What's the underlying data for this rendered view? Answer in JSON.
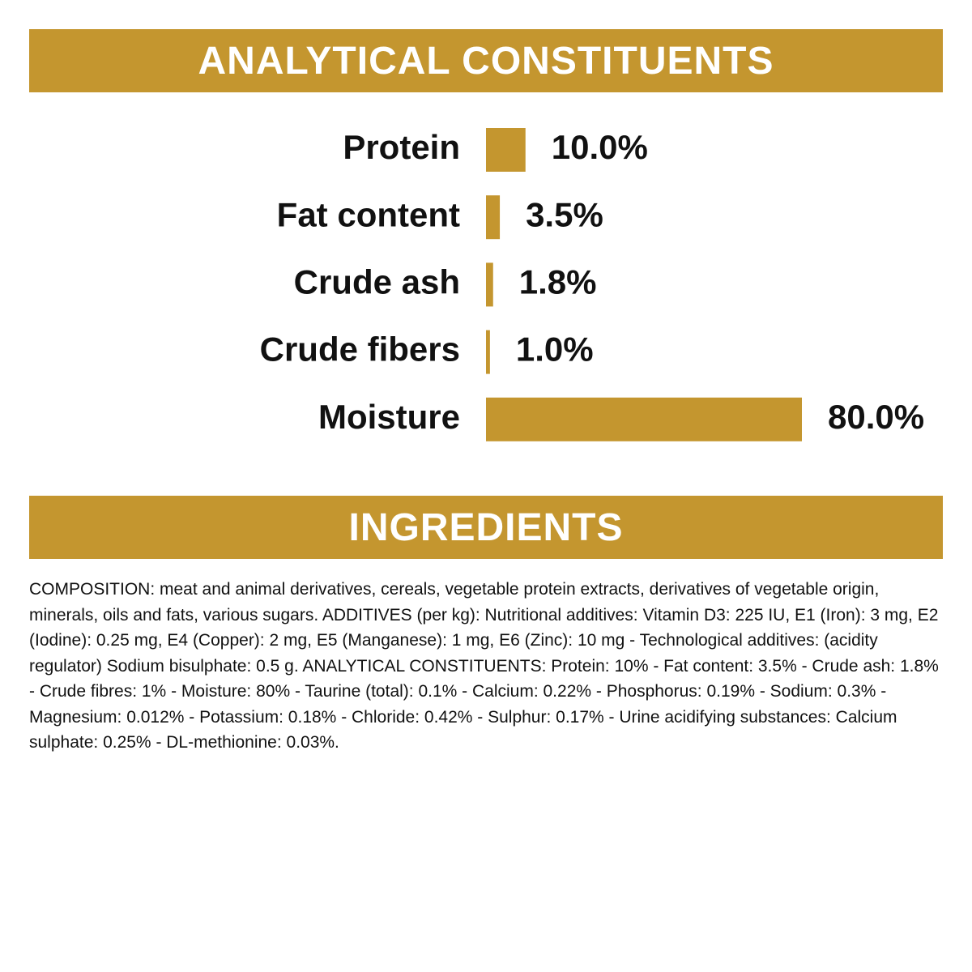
{
  "chart_data": {
    "type": "bar",
    "orientation": "horizontal",
    "title": "ANALYTICAL CONSTITUENTS",
    "categories": [
      "Protein",
      "Fat content",
      "Crude ash",
      "Crude fibers",
      "Moisture"
    ],
    "values": [
      10,
      3.5,
      1.8,
      1,
      80
    ],
    "value_labels": [
      "10.0%",
      "3.5%",
      "1.8%",
      "1.0%",
      "80.0%"
    ],
    "color": "#c4962f"
  },
  "ingredients": {
    "title": "INGREDIENTS",
    "text": "COMPOSITION: meat and animal derivatives, cereals, vegetable protein extracts, derivatives of vegetable origin, minerals, oils and fats, various sugars. ADDITIVES (per kg): Nutritional additives: Vitamin D3: 225 IU, E1 (Iron): 3 mg, E2 (Iodine): 0.25 mg, E4 (Copper): 2 mg, E5 (Manganese): 1 mg, E6 (Zinc): 10 mg - Technological additives: (acidity regulator) Sodium bisulphate: 0.5 g. ANALYTICAL CONSTITUENTS: Protein: 10% - Fat content: 3.5% - Crude ash: 1.8% - Crude fibres: 1% - Moisture: 80% - Taurine (total): 0.1% - Calcium: 0.22% - Phosphorus: 0.19% - Sodium: 0.3% - Magnesium: 0.012% - Potassium: 0.18% - Chloride: 0.42% - Sulphur: 0.17% - Urine acidifying substances: Calcium sulphate: 0.25% - DL-methionine: 0.03%."
  }
}
